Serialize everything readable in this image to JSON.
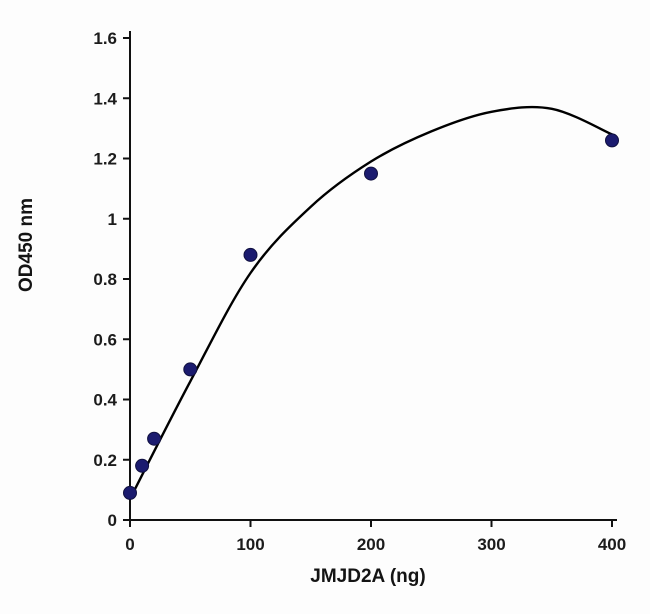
{
  "chart_data": {
    "type": "scatter",
    "title": "",
    "xlabel": "JMJD2A (ng)",
    "ylabel": "OD450 nm",
    "xlim": [
      0,
      400
    ],
    "ylim": [
      0,
      1.6
    ],
    "x_ticks": [
      "0",
      "100",
      "200",
      "300",
      "400"
    ],
    "y_ticks": [
      "0",
      "0.2",
      "0.4",
      "0.6",
      "0.8",
      "1",
      "1.2",
      "1.4",
      "1.6"
    ],
    "grid": false,
    "legend_position": "none",
    "colors": {
      "marker": "#1b1b6f",
      "marker_edge": "#10103f",
      "curve": "#000000",
      "axis": "#111111"
    },
    "series": [
      {
        "name": "JMJD2A data points",
        "type": "scatter",
        "points": [
          [
            0,
            0.09
          ],
          [
            10,
            0.18
          ],
          [
            20,
            0.27
          ],
          [
            50,
            0.5
          ],
          [
            100,
            0.88
          ],
          [
            200,
            1.15
          ],
          [
            400,
            1.26
          ]
        ]
      },
      {
        "name": "fitted trend curve",
        "type": "line",
        "points": [
          [
            0,
            0.07
          ],
          [
            50,
            0.46
          ],
          [
            100,
            0.82
          ],
          [
            150,
            1.04
          ],
          [
            200,
            1.19
          ],
          [
            250,
            1.29
          ],
          [
            300,
            1.355
          ],
          [
            350,
            1.365
          ],
          [
            400,
            1.28
          ]
        ]
      }
    ]
  }
}
